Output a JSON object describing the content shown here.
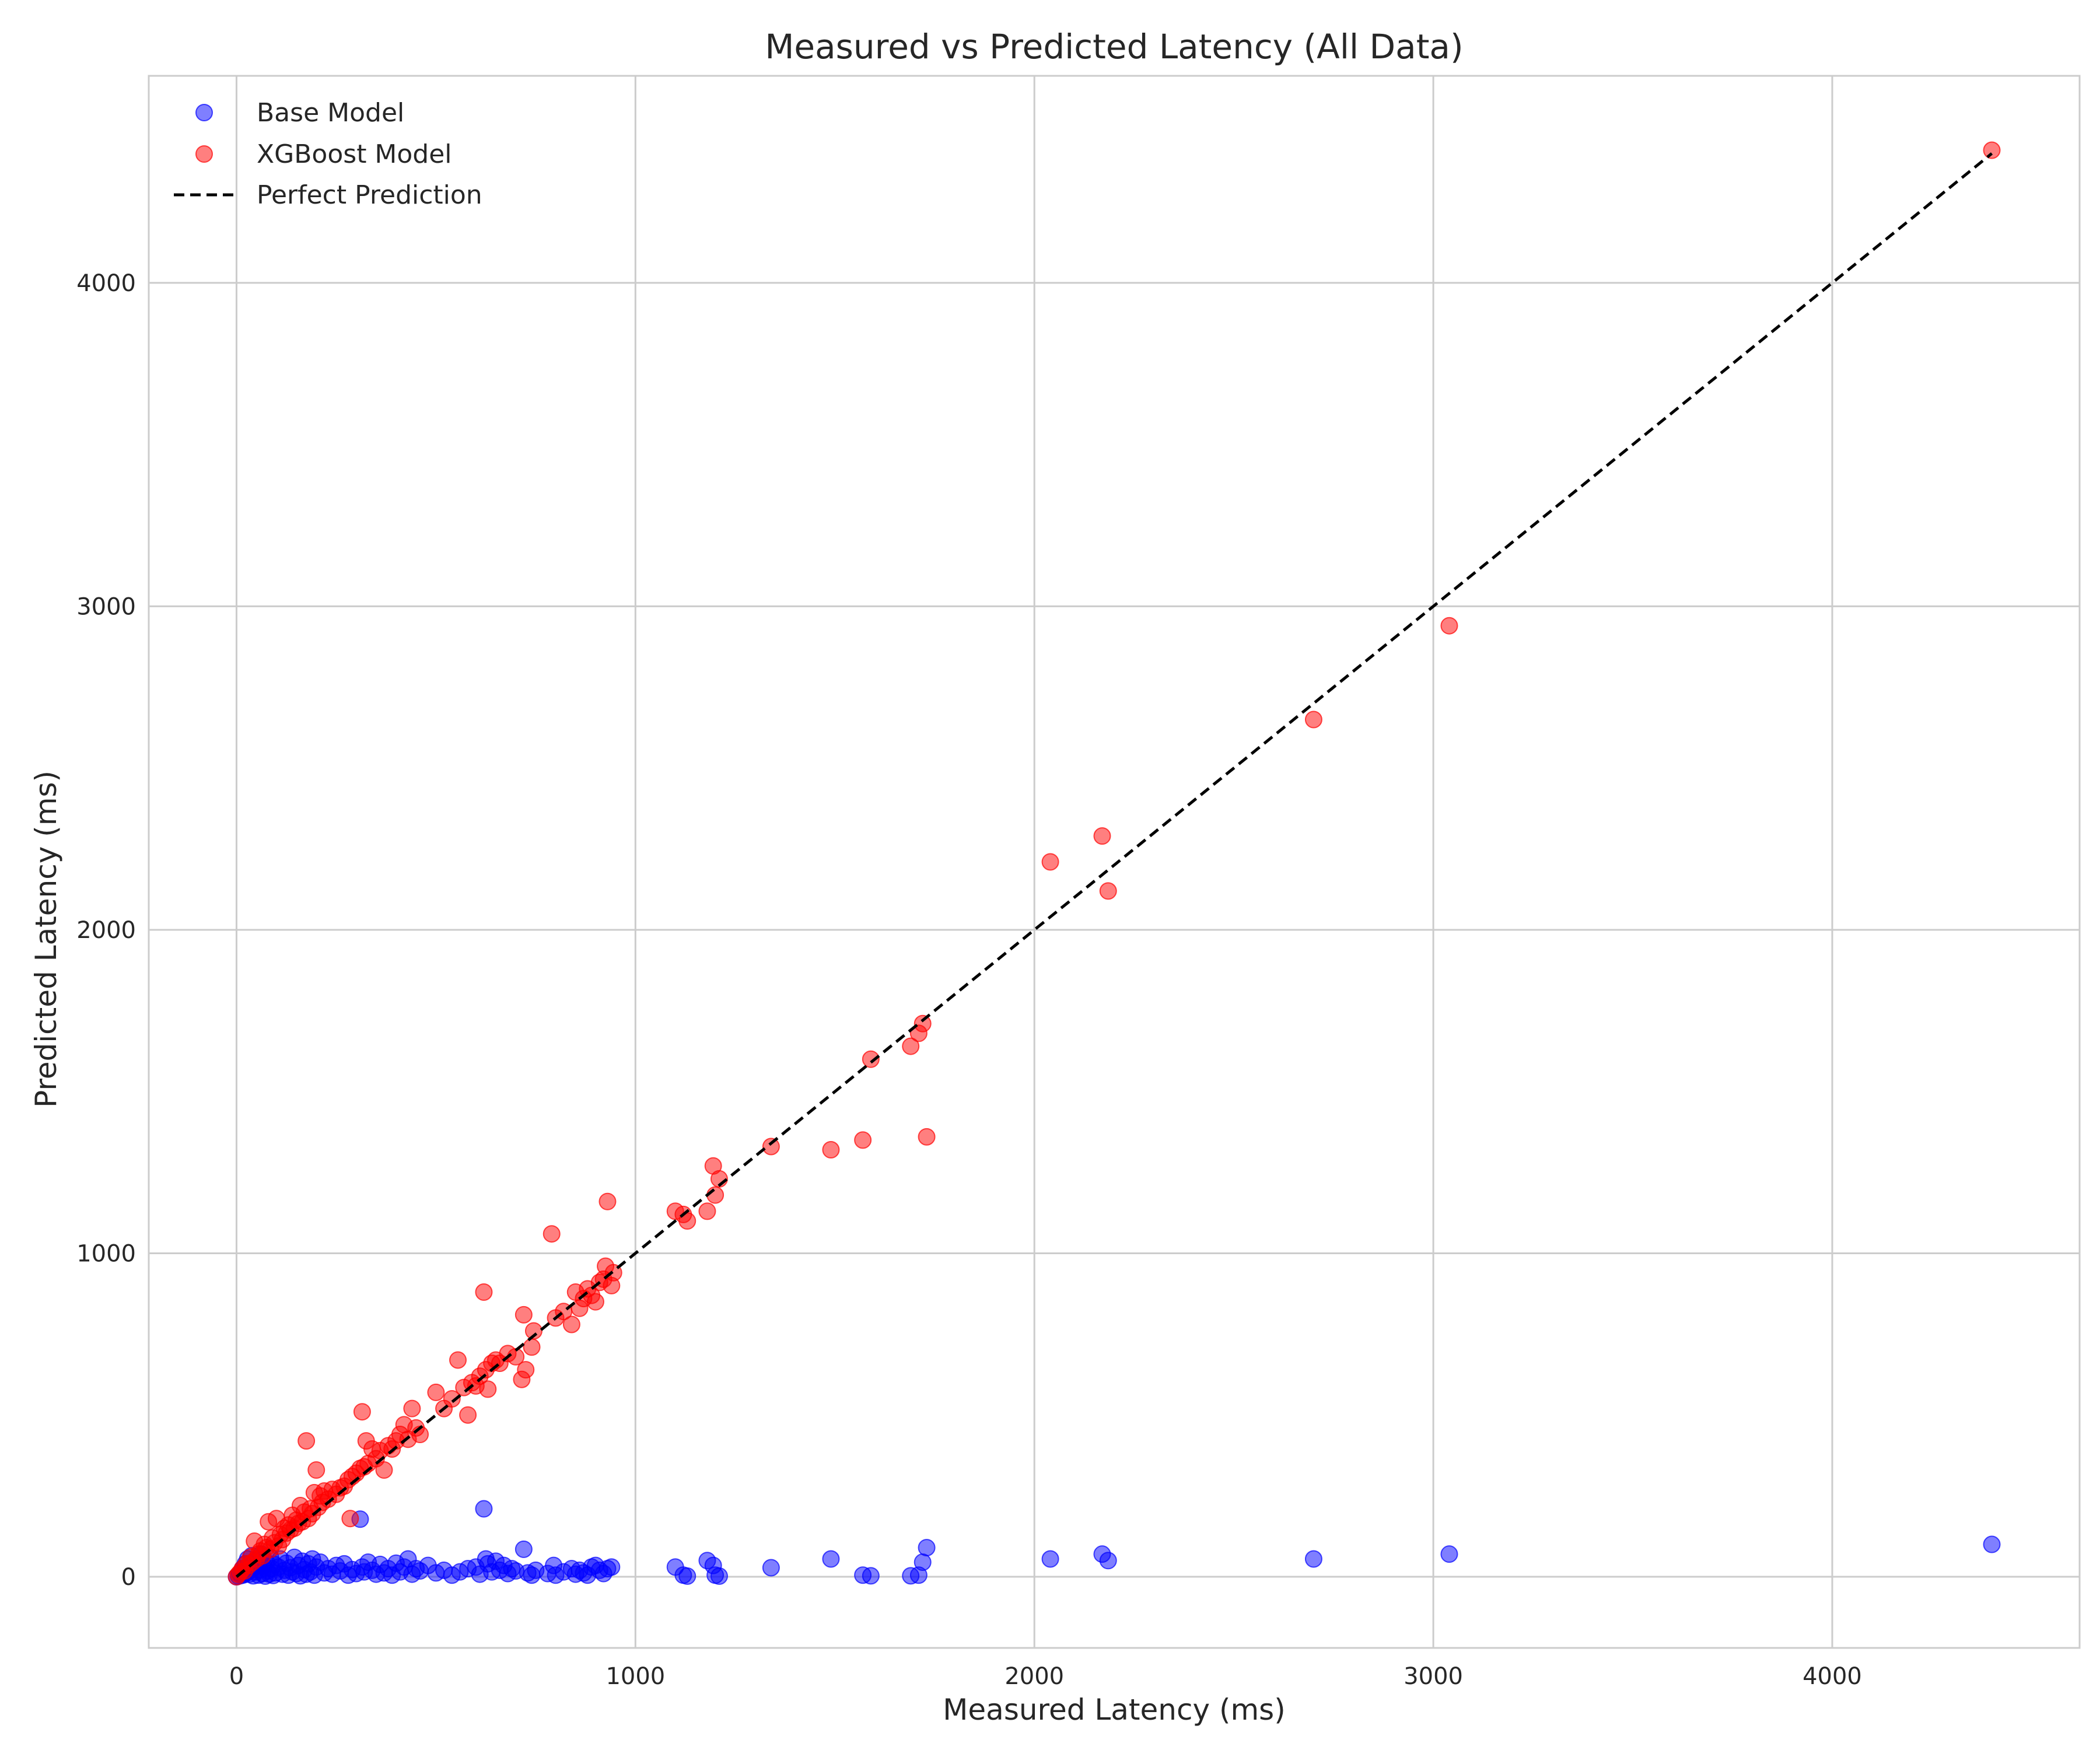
{
  "chart_data": {
    "type": "scatter",
    "title": "Measured vs Predicted Latency (All Data)",
    "xlabel": "Measured Latency (ms)",
    "ylabel": "Predicted Latency (ms)",
    "xlim": [
      -220,
      4620
    ],
    "ylim": [
      -220,
      4640
    ],
    "xticks": [
      0,
      1000,
      2000,
      3000,
      4000
    ],
    "yticks": [
      0,
      1000,
      2000,
      3000,
      4000
    ],
    "grid": true,
    "legend_position": "top-left",
    "legend": [
      "Base Model",
      "XGBoost Model",
      "Perfect Prediction"
    ],
    "reference_line": {
      "name": "Perfect Prediction",
      "x": [
        0,
        4400
      ],
      "y": [
        0,
        4400
      ],
      "style": "dashed",
      "color": "#000000"
    },
    "series": [
      {
        "name": "Base Model",
        "color": "#0000ff",
        "points": [
          [
            0,
            0
          ],
          [
            5,
            2
          ],
          [
            8,
            10
          ],
          [
            12,
            4
          ],
          [
            15,
            25
          ],
          [
            18,
            6
          ],
          [
            22,
            40
          ],
          [
            25,
            12
          ],
          [
            28,
            55
          ],
          [
            32,
            8
          ],
          [
            35,
            20
          ],
          [
            38,
            65
          ],
          [
            42,
            3
          ],
          [
            45,
            30
          ],
          [
            48,
            15
          ],
          [
            52,
            50
          ],
          [
            55,
            5
          ],
          [
            58,
            22
          ],
          [
            62,
            70
          ],
          [
            65,
            10
          ],
          [
            68,
            35
          ],
          [
            72,
            2
          ],
          [
            75,
            45
          ],
          [
            78,
            18
          ],
          [
            82,
            8
          ],
          [
            85,
            60
          ],
          [
            88,
            25
          ],
          [
            92,
            4
          ],
          [
            95,
            38
          ],
          [
            98,
            12
          ],
          [
            105,
            30
          ],
          [
            110,
            55
          ],
          [
            115,
            8
          ],
          [
            120,
            20
          ],
          [
            125,
            42
          ],
          [
            130,
            5
          ],
          [
            135,
            28
          ],
          [
            140,
            15
          ],
          [
            145,
            60
          ],
          [
            150,
            10
          ],
          [
            155,
            35
          ],
          [
            160,
            3
          ],
          [
            165,
            48
          ],
          [
            170,
            22
          ],
          [
            175,
            8
          ],
          [
            180,
            40
          ],
          [
            185,
            15
          ],
          [
            190,
            55
          ],
          [
            195,
            5
          ],
          [
            200,
            30
          ],
          [
            210,
            45
          ],
          [
            220,
            12
          ],
          [
            230,
            25
          ],
          [
            240,
            8
          ],
          [
            250,
            35
          ],
          [
            260,
            18
          ],
          [
            270,
            40
          ],
          [
            280,
            5
          ],
          [
            290,
            22
          ],
          [
            300,
            10
          ],
          [
            310,
            178
          ],
          [
            315,
            30
          ],
          [
            320,
            15
          ],
          [
            330,
            45
          ],
          [
            340,
            20
          ],
          [
            350,
            8
          ],
          [
            360,
            38
          ],
          [
            370,
            12
          ],
          [
            380,
            25
          ],
          [
            390,
            5
          ],
          [
            400,
            42
          ],
          [
            410,
            15
          ],
          [
            420,
            30
          ],
          [
            430,
            55
          ],
          [
            440,
            8
          ],
          [
            450,
            25
          ],
          [
            460,
            18
          ],
          [
            480,
            35
          ],
          [
            500,
            12
          ],
          [
            520,
            20
          ],
          [
            540,
            5
          ],
          [
            560,
            15
          ],
          [
            580,
            25
          ],
          [
            600,
            30
          ],
          [
            610,
            8
          ],
          [
            620,
            210
          ],
          [
            625,
            55
          ],
          [
            630,
            40
          ],
          [
            640,
            15
          ],
          [
            650,
            48
          ],
          [
            660,
            20
          ],
          [
            670,
            35
          ],
          [
            680,
            10
          ],
          [
            690,
            25
          ],
          [
            700,
            18
          ],
          [
            720,
            85
          ],
          [
            730,
            12
          ],
          [
            740,
            5
          ],
          [
            750,
            20
          ],
          [
            780,
            10
          ],
          [
            795,
            35
          ],
          [
            800,
            5
          ],
          [
            820,
            15
          ],
          [
            840,
            25
          ],
          [
            850,
            8
          ],
          [
            860,
            20
          ],
          [
            870,
            12
          ],
          [
            880,
            5
          ],
          [
            890,
            30
          ],
          [
            900,
            35
          ],
          [
            910,
            20
          ],
          [
            920,
            10
          ],
          [
            930,
            25
          ],
          [
            940,
            30
          ],
          [
            1100,
            30
          ],
          [
            1120,
            5
          ],
          [
            1130,
            2
          ],
          [
            1180,
            50
          ],
          [
            1195,
            35
          ],
          [
            1200,
            5
          ],
          [
            1210,
            2
          ],
          [
            1340,
            28
          ],
          [
            1490,
            55
          ],
          [
            1570,
            5
          ],
          [
            1590,
            3
          ],
          [
            1690,
            3
          ],
          [
            1710,
            5
          ],
          [
            1720,
            45
          ],
          [
            1730,
            90
          ],
          [
            2040,
            55
          ],
          [
            2170,
            70
          ],
          [
            2185,
            50
          ],
          [
            2700,
            55
          ],
          [
            3040,
            70
          ],
          [
            4400,
            100
          ]
        ]
      },
      {
        "name": "XGBoost Model",
        "color": "#ff0000",
        "points": [
          [
            0,
            0
          ],
          [
            5,
            8
          ],
          [
            10,
            15
          ],
          [
            15,
            25
          ],
          [
            20,
            18
          ],
          [
            25,
            40
          ],
          [
            30,
            35
          ],
          [
            35,
            60
          ],
          [
            40,
            45
          ],
          [
            45,
            110
          ],
          [
            50,
            55
          ],
          [
            55,
            70
          ],
          [
            60,
            80
          ],
          [
            65,
            65
          ],
          [
            70,
            100
          ],
          [
            75,
            90
          ],
          [
            80,
            170
          ],
          [
            85,
            85
          ],
          [
            90,
            120
          ],
          [
            95,
            105
          ],
          [
            100,
            180
          ],
          [
            105,
            95
          ],
          [
            110,
            130
          ],
          [
            115,
            115
          ],
          [
            120,
            150
          ],
          [
            125,
            135
          ],
          [
            130,
            160
          ],
          [
            135,
            145
          ],
          [
            140,
            190
          ],
          [
            145,
            150
          ],
          [
            150,
            175
          ],
          [
            155,
            165
          ],
          [
            160,
            220
          ],
          [
            165,
            170
          ],
          [
            170,
            200
          ],
          [
            175,
            420
          ],
          [
            180,
            180
          ],
          [
            185,
            210
          ],
          [
            190,
            195
          ],
          [
            195,
            260
          ],
          [
            200,
            330
          ],
          [
            205,
            215
          ],
          [
            210,
            250
          ],
          [
            215,
            230
          ],
          [
            220,
            265
          ],
          [
            230,
            240
          ],
          [
            240,
            270
          ],
          [
            250,
            255
          ],
          [
            260,
            275
          ],
          [
            270,
            280
          ],
          [
            280,
            300
          ],
          [
            285,
            180
          ],
          [
            290,
            310
          ],
          [
            300,
            320
          ],
          [
            310,
            335
          ],
          [
            315,
            510
          ],
          [
            320,
            340
          ],
          [
            325,
            420
          ],
          [
            330,
            350
          ],
          [
            340,
            395
          ],
          [
            350,
            365
          ],
          [
            360,
            390
          ],
          [
            370,
            330
          ],
          [
            380,
            405
          ],
          [
            390,
            395
          ],
          [
            400,
            420
          ],
          [
            410,
            440
          ],
          [
            420,
            470
          ],
          [
            430,
            425
          ],
          [
            440,
            520
          ],
          [
            450,
            460
          ],
          [
            460,
            440
          ],
          [
            500,
            570
          ],
          [
            520,
            520
          ],
          [
            540,
            550
          ],
          [
            555,
            670
          ],
          [
            570,
            585
          ],
          [
            580,
            500
          ],
          [
            590,
            600
          ],
          [
            600,
            590
          ],
          [
            610,
            620
          ],
          [
            620,
            880
          ],
          [
            625,
            640
          ],
          [
            630,
            580
          ],
          [
            640,
            660
          ],
          [
            650,
            670
          ],
          [
            660,
            660
          ],
          [
            680,
            690
          ],
          [
            700,
            680
          ],
          [
            715,
            610
          ],
          [
            720,
            810
          ],
          [
            725,
            640
          ],
          [
            740,
            710
          ],
          [
            745,
            760
          ],
          [
            790,
            1060
          ],
          [
            800,
            800
          ],
          [
            820,
            820
          ],
          [
            840,
            780
          ],
          [
            850,
            880
          ],
          [
            860,
            830
          ],
          [
            870,
            860
          ],
          [
            880,
            890
          ],
          [
            890,
            870
          ],
          [
            900,
            850
          ],
          [
            910,
            910
          ],
          [
            920,
            920
          ],
          [
            925,
            960
          ],
          [
            930,
            1160
          ],
          [
            940,
            900
          ],
          [
            945,
            940
          ],
          [
            1100,
            1130
          ],
          [
            1120,
            1120
          ],
          [
            1130,
            1100
          ],
          [
            1180,
            1130
          ],
          [
            1195,
            1270
          ],
          [
            1200,
            1180
          ],
          [
            1210,
            1230
          ],
          [
            1340,
            1330
          ],
          [
            1490,
            1320
          ],
          [
            1570,
            1350
          ],
          [
            1590,
            1600
          ],
          [
            1690,
            1640
          ],
          [
            1710,
            1680
          ],
          [
            1720,
            1710
          ],
          [
            1730,
            1360
          ],
          [
            2040,
            2210
          ],
          [
            2170,
            2290
          ],
          [
            2185,
            2120
          ],
          [
            2700,
            2650
          ],
          [
            3040,
            2940
          ],
          [
            4400,
            4410
          ]
        ]
      }
    ]
  }
}
